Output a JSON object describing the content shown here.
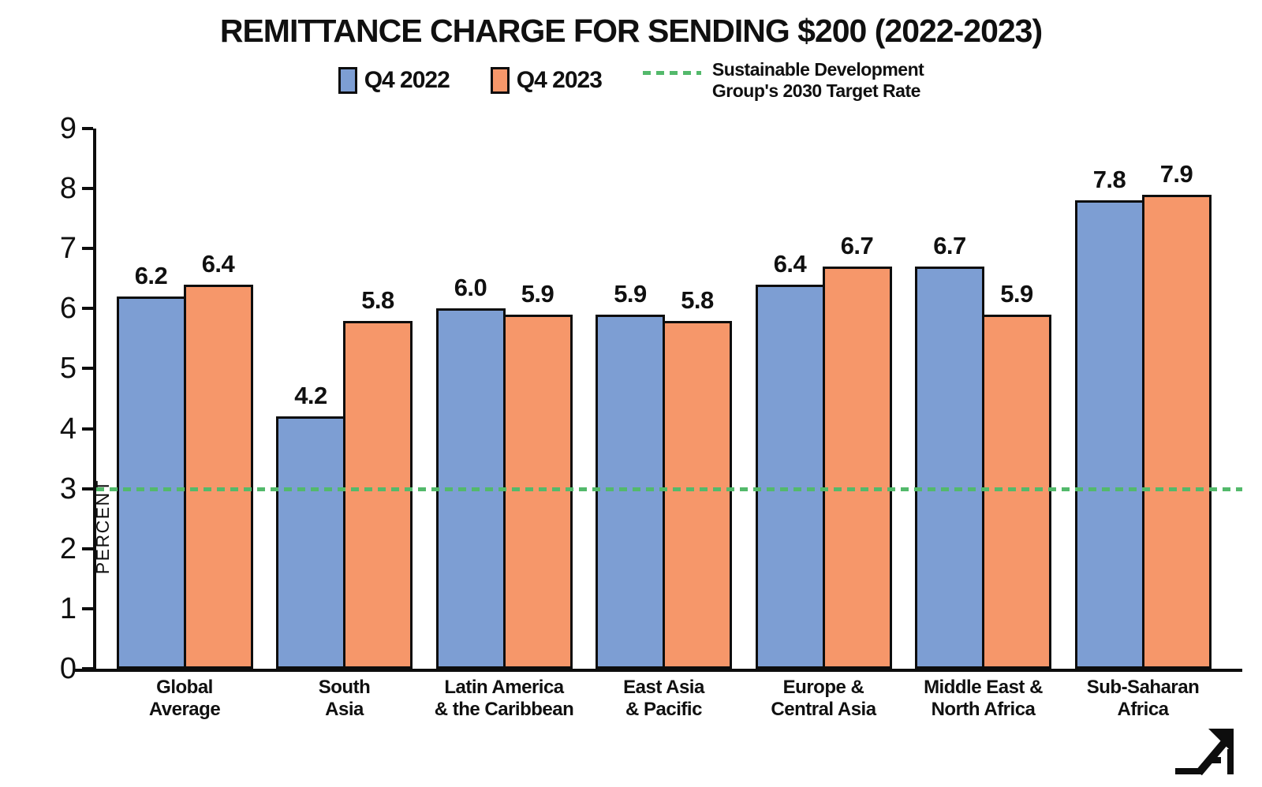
{
  "title": "REMITTANCE CHARGE FOR SENDING $200 (2022-2023)",
  "legend": {
    "series1_label": "Q4 2022",
    "series2_label": "Q4 2023",
    "target_line1": "Sustainable Development",
    "target_line2": "Group's 2030 Target Rate"
  },
  "colors": {
    "series1": "#7d9ed3",
    "series2": "#f6976a",
    "target": "#53b96b",
    "bar_border": "#0d0d0d"
  },
  "icons": {
    "brand_logo": "arrow-up-right-logo",
    "target_legend_icon": "green-dotted-line"
  },
  "chart_data": {
    "type": "bar",
    "title": "REMITTANCE CHARGE FOR SENDING $200 (2022-2023)",
    "xlabel": "",
    "ylabel": "PERCENT",
    "ylim": [
      0,
      9
    ],
    "yticks": [
      0,
      1,
      2,
      3,
      4,
      5,
      6,
      7,
      8,
      9
    ],
    "grid": false,
    "legend_position": "top",
    "target_value": 3,
    "categories": [
      "Global\nAverage",
      "South\nAsia",
      "Latin America\n& the Caribbean",
      "East Asia\n& Pacific",
      "Europe &\nCentral Asia",
      "Middle East &\nNorth Africa",
      "Sub-Saharan\nAfrica"
    ],
    "series": [
      {
        "name": "Q4 2022",
        "values": [
          6.2,
          4.2,
          6.0,
          5.9,
          6.4,
          6.7,
          7.8
        ]
      },
      {
        "name": "Q4 2023",
        "values": [
          6.4,
          5.8,
          5.9,
          5.8,
          6.7,
          5.9,
          7.9
        ]
      }
    ]
  }
}
